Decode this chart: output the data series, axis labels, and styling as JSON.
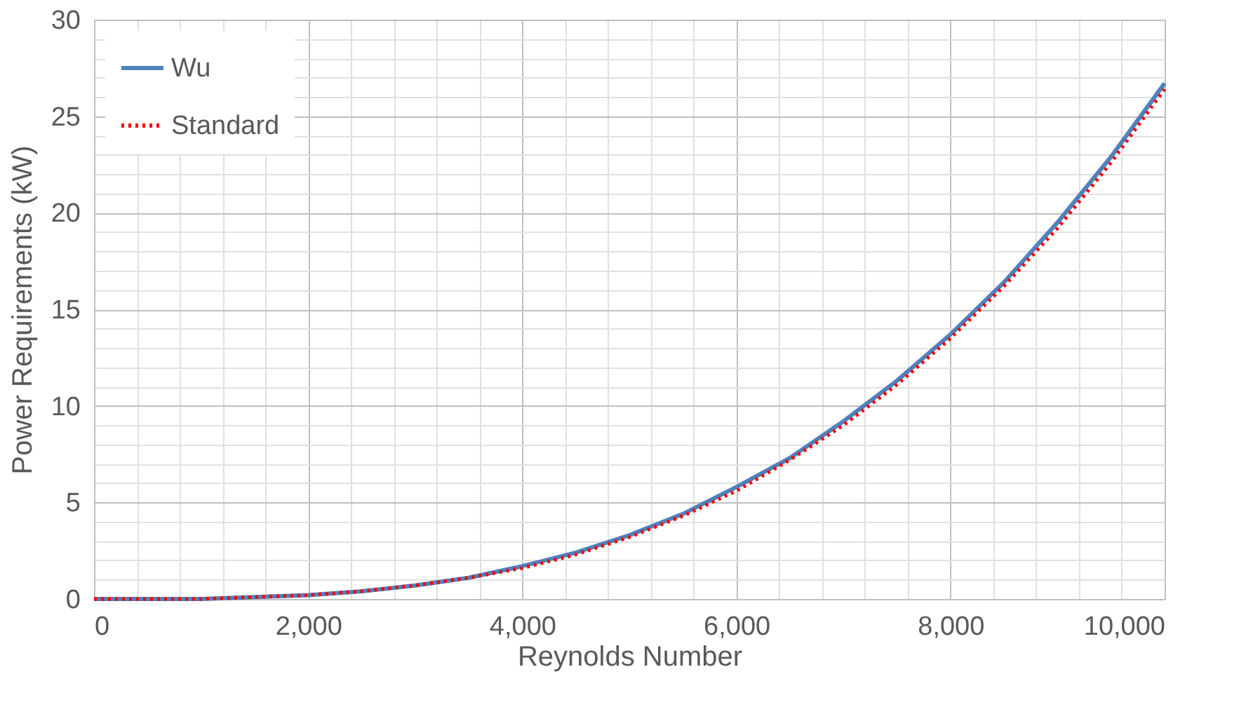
{
  "chart_data": {
    "type": "line",
    "xlabel": "Reynolds Number",
    "ylabel": "Power Requirements (kW)",
    "x": [
      0,
      500,
      1000,
      1500,
      2000,
      2500,
      3000,
      3500,
      4000,
      4500,
      5000,
      5500,
      6000,
      6500,
      7000,
      7500,
      8000,
      8500,
      9000,
      9500,
      10000
    ],
    "series": [
      {
        "name": "Wu",
        "color": "#4f81bd",
        "line_style": "solid",
        "values": [
          0,
          0,
          0,
          0.1,
          0.2,
          0.4,
          0.7,
          1.1,
          1.7,
          2.4,
          3.3,
          4.4,
          5.8,
          7.3,
          9.2,
          11.3,
          13.7,
          16.4,
          19.5,
          22.9,
          26.7
        ]
      },
      {
        "name": "Standard",
        "color": "#ff0000",
        "line_style": "dotted",
        "values": [
          0,
          0,
          0,
          0.1,
          0.2,
          0.4,
          0.7,
          1.1,
          1.6,
          2.3,
          3.2,
          4.3,
          5.6,
          7.2,
          9.0,
          11.1,
          13.5,
          16.2,
          19.2,
          22.6,
          26.4
        ]
      }
    ],
    "xlim": [
      0,
      10000
    ],
    "ylim": [
      0,
      30
    ],
    "xticks": [
      {
        "value": 0,
        "label": "0"
      },
      {
        "value": 400,
        "label": null
      },
      {
        "value": 800,
        "label": null
      },
      {
        "value": 1200,
        "label": null
      },
      {
        "value": 1600,
        "label": null
      },
      {
        "value": 2000,
        "label": "2,000"
      },
      {
        "value": 2400,
        "label": null
      },
      {
        "value": 2800,
        "label": null
      },
      {
        "value": 3200,
        "label": null
      },
      {
        "value": 3600,
        "label": null
      },
      {
        "value": 4000,
        "label": "4,000"
      },
      {
        "value": 4400,
        "label": null
      },
      {
        "value": 4800,
        "label": null
      },
      {
        "value": 5200,
        "label": null
      },
      {
        "value": 5600,
        "label": null
      },
      {
        "value": 6000,
        "label": "6,000"
      },
      {
        "value": 6400,
        "label": null
      },
      {
        "value": 6800,
        "label": null
      },
      {
        "value": 7200,
        "label": null
      },
      {
        "value": 7600,
        "label": null
      },
      {
        "value": 8000,
        "label": "8,000"
      },
      {
        "value": 8400,
        "label": null
      },
      {
        "value": 8800,
        "label": null
      },
      {
        "value": 9200,
        "label": null
      },
      {
        "value": 9600,
        "label": null
      },
      {
        "value": 10000,
        "label": "10,000"
      }
    ],
    "yticks": [
      0,
      {
        "value": 1,
        "label": null
      },
      {
        "value": 2,
        "label": null
      },
      {
        "value": 3,
        "label": null
      },
      {
        "value": 4,
        "label": null
      },
      5,
      {
        "value": 6,
        "label": null
      },
      {
        "value": 7,
        "label": null
      },
      {
        "value": 8,
        "label": null
      },
      {
        "value": 9,
        "label": null
      },
      10,
      {
        "value": 11,
        "label": null
      },
      {
        "value": 12,
        "label": null
      },
      {
        "value": 13,
        "label": null
      },
      {
        "value": 14,
        "label": null
      },
      15,
      {
        "value": 16,
        "label": null
      },
      {
        "value": 17,
        "label": null
      },
      {
        "value": 18,
        "label": null
      },
      {
        "value": 19,
        "label": null
      },
      20,
      {
        "value": 21,
        "label": null
      },
      {
        "value": 22,
        "label": null
      },
      {
        "value": 23,
        "label": null
      },
      {
        "value": 24,
        "label": null
      },
      25,
      {
        "value": 26,
        "label": null
      },
      {
        "value": 27,
        "label": null
      },
      {
        "value": 28,
        "label": null
      },
      {
        "value": 29,
        "label": null
      },
      30
    ],
    "grid": true,
    "legend": "top left",
    "marker": "none"
  }
}
